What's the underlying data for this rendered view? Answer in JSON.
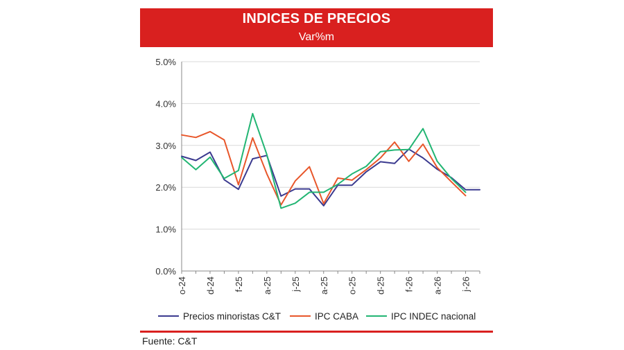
{
  "header": {
    "title": "INDICES DE PRECIOS",
    "subtitle": "Var%m"
  },
  "footer": {
    "source": "Fuente: C&T"
  },
  "colors": {
    "banner": "#d9201f",
    "series": [
      "#3b3a8f",
      "#e8562a",
      "#22b573"
    ]
  },
  "chart_data": {
    "type": "line",
    "title": "INDICES DE PRECIOS",
    "subtitle": "Var%m",
    "y_ticks": [
      "0.0%",
      "1.0%",
      "2.0%",
      "3.0%",
      "4.0%",
      "5.0%"
    ],
    "ylim": [
      0,
      5
    ],
    "grid": "horizontal",
    "legend": "bottom",
    "x_tick_labels": [
      {
        "i": 0,
        "label": "o-24"
      },
      {
        "i": 2,
        "label": "d-24"
      },
      {
        "i": 4,
        "label": "f-25"
      },
      {
        "i": 6,
        "label": "a-25"
      },
      {
        "i": 8,
        "label": "j-25"
      },
      {
        "i": 10,
        "label": "a-25"
      },
      {
        "i": 12,
        "label": "o-25"
      },
      {
        "i": 14,
        "label": "d-25"
      },
      {
        "i": 16,
        "label": "f-26"
      },
      {
        "i": 18,
        "label": "a-26"
      },
      {
        "i": 20,
        "label": "j-26"
      }
    ],
    "n_points": 22,
    "series": [
      {
        "name": "Precios minoristas C&T",
        "color": "#3b3a8f",
        "values": [
          2.74,
          2.64,
          2.84,
          2.18,
          1.95,
          2.68,
          2.76,
          1.79,
          1.96,
          1.96,
          1.56,
          2.05,
          2.05,
          2.37,
          2.61,
          2.57,
          2.91,
          2.7,
          2.43,
          2.23,
          1.94,
          1.94
        ]
      },
      {
        "name": "IPC CABA",
        "color": "#e8562a",
        "values": [
          3.25,
          3.19,
          3.33,
          3.13,
          2.06,
          3.18,
          2.32,
          1.58,
          2.15,
          2.49,
          1.61,
          2.22,
          2.17,
          2.42,
          2.7,
          3.08,
          2.62,
          3.03,
          2.47,
          2.13,
          1.8,
          null
        ]
      },
      {
        "name": "IPC INDEC nacional",
        "color": "#22b573",
        "values": [
          2.71,
          2.42,
          2.72,
          2.21,
          2.4,
          3.76,
          2.78,
          1.5,
          1.62,
          1.88,
          1.88,
          2.07,
          2.32,
          2.5,
          2.85,
          2.89,
          2.9,
          3.4,
          2.62,
          2.21,
          1.88,
          null
        ]
      }
    ]
  }
}
